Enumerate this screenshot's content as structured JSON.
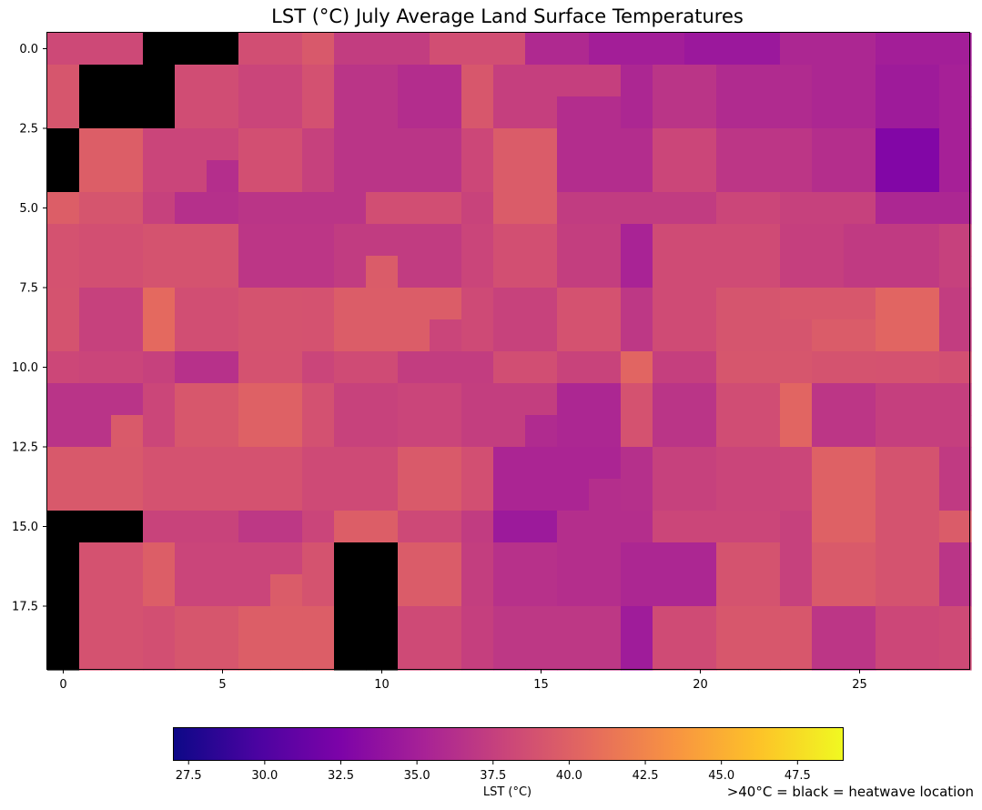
{
  "chart_data": {
    "type": "heatmap",
    "title": "LST (°C) July Average Land Surface Temperatures",
    "colormap": "plasma",
    "n_cols": 29,
    "n_rows": 20,
    "x_ticks": [
      "0",
      "5",
      "10",
      "15",
      "20",
      "25"
    ],
    "y_ticks": [
      "0.0",
      "2.5",
      "5.0",
      "7.5",
      "10.0",
      "12.5",
      "15.0",
      "17.5"
    ],
    "colorbar": {
      "label": "LST (°C)",
      "range": [
        27,
        49
      ],
      "ticks": [
        "27.5",
        "30.0",
        "32.5",
        "35.0",
        "37.5",
        "40.0",
        "42.5",
        "45.0",
        "47.5"
      ]
    },
    "heatwave_threshold": 40,
    "heatwave_color": "#000000",
    "note": ">40°C = black = heatwave location",
    "values": [
      [
        38.2,
        38.2,
        38.2,
        null,
        null,
        null,
        38.6,
        38.6,
        39.4,
        37.3,
        37.3,
        37.3,
        38.6,
        38.6,
        38.6,
        35.8,
        35.8,
        34.9,
        34.9,
        34.9,
        34.4,
        34.4,
        34.4,
        35.6,
        35.6,
        35.6,
        34.9,
        34.9,
        34.9
      ],
      [
        39.2,
        null,
        null,
        null,
        38.5,
        38.5,
        37.9,
        37.9,
        38.8,
        36.7,
        36.7,
        36.1,
        36.1,
        39.3,
        37.5,
        37.5,
        37.5,
        37.5,
        35.6,
        36.7,
        36.7,
        35.9,
        35.9,
        35.9,
        35.6,
        35.6,
        34.6,
        34.6,
        35.1
      ],
      [
        39.2,
        null,
        null,
        null,
        38.5,
        38.5,
        37.9,
        37.9,
        38.8,
        36.7,
        36.7,
        36.1,
        36.1,
        39.3,
        37.5,
        37.5,
        36.1,
        36.1,
        35.6,
        36.7,
        36.7,
        35.9,
        35.9,
        35.9,
        35.6,
        35.6,
        34.6,
        34.6,
        35.1
      ],
      [
        null,
        39.8,
        39.8,
        37.9,
        37.9,
        37.9,
        38.7,
        38.7,
        37.6,
        36.7,
        36.7,
        36.7,
        36.7,
        38.1,
        39.6,
        39.6,
        36.1,
        36.1,
        36.1,
        38.0,
        38.0,
        36.8,
        36.8,
        36.8,
        36.2,
        36.2,
        32.8,
        32.8,
        35.1
      ],
      [
        null,
        39.8,
        39.8,
        37.9,
        37.9,
        36.2,
        38.7,
        38.7,
        37.6,
        36.7,
        36.7,
        36.7,
        36.7,
        38.1,
        39.6,
        39.6,
        36.1,
        36.1,
        36.1,
        38.0,
        38.0,
        36.8,
        36.8,
        36.8,
        36.2,
        36.2,
        32.8,
        32.8,
        35.1
      ],
      [
        39.8,
        39.1,
        39.1,
        37.6,
        36.3,
        36.3,
        36.7,
        36.7,
        36.7,
        36.7,
        38.6,
        38.6,
        38.6,
        37.8,
        39.6,
        39.6,
        37.2,
        37.2,
        37.2,
        37.2,
        37.2,
        38.0,
        38.0,
        37.6,
        37.6,
        37.6,
        35.6,
        35.6,
        35.6
      ],
      [
        38.9,
        38.7,
        38.7,
        39.0,
        39.0,
        39.0,
        36.8,
        36.8,
        36.8,
        37.2,
        37.2,
        37.2,
        37.2,
        37.9,
        38.7,
        38.7,
        37.4,
        37.4,
        35.3,
        38.4,
        38.4,
        38.4,
        38.4,
        37.5,
        37.5,
        37.1,
        37.1,
        37.1,
        37.6
      ],
      [
        38.9,
        38.7,
        38.7,
        39.0,
        39.0,
        39.0,
        36.8,
        36.8,
        36.8,
        37.2,
        39.6,
        37.2,
        37.2,
        37.9,
        38.7,
        38.7,
        37.4,
        37.4,
        35.3,
        38.4,
        38.4,
        38.4,
        38.4,
        37.5,
        37.5,
        37.1,
        37.1,
        37.1,
        37.6
      ],
      [
        39.0,
        37.6,
        37.6,
        40.6,
        38.6,
        38.6,
        39.0,
        39.0,
        38.9,
        39.7,
        39.7,
        39.7,
        39.7,
        38.3,
        37.7,
        37.7,
        38.9,
        38.9,
        36.9,
        38.4,
        38.4,
        39.1,
        39.1,
        39.3,
        39.3,
        39.3,
        40.3,
        40.3,
        37.3
      ],
      [
        39.0,
        37.6,
        37.6,
        40.6,
        38.6,
        38.6,
        39.0,
        39.0,
        38.9,
        39.7,
        39.7,
        39.7,
        37.9,
        38.3,
        37.7,
        37.7,
        38.9,
        38.9,
        36.9,
        38.4,
        38.4,
        39.1,
        39.1,
        39.1,
        39.6,
        39.6,
        40.3,
        40.3,
        37.3
      ],
      [
        38.1,
        37.9,
        37.9,
        37.6,
        36.4,
        36.4,
        38.9,
        38.9,
        37.9,
        38.4,
        38.4,
        37.3,
        37.3,
        37.3,
        38.6,
        38.6,
        37.8,
        37.8,
        40.3,
        37.5,
        37.5,
        39.2,
        39.2,
        39.2,
        39.0,
        39.0,
        38.9,
        38.9,
        38.7
      ],
      [
        36.6,
        36.6,
        36.6,
        38.0,
        39.3,
        39.3,
        40.0,
        40.0,
        38.8,
        37.7,
        37.7,
        37.9,
        37.9,
        37.4,
        37.4,
        37.4,
        35.6,
        35.6,
        38.9,
        36.7,
        36.7,
        38.5,
        38.5,
        40.3,
        36.8,
        36.8,
        37.5,
        37.5,
        37.5
      ],
      [
        36.6,
        36.6,
        39.5,
        38.0,
        39.3,
        39.3,
        40.0,
        40.0,
        38.8,
        37.7,
        37.7,
        37.9,
        37.9,
        37.4,
        37.4,
        35.9,
        35.6,
        35.6,
        38.9,
        36.7,
        36.7,
        38.5,
        38.5,
        40.3,
        36.8,
        36.8,
        37.5,
        37.5,
        37.5
      ],
      [
        39.4,
        39.4,
        39.4,
        38.9,
        38.9,
        38.9,
        38.9,
        38.9,
        38.3,
        38.3,
        38.3,
        39.5,
        39.5,
        38.7,
        35.5,
        35.5,
        35.5,
        35.5,
        36.3,
        37.6,
        37.6,
        37.9,
        37.9,
        38.0,
        40.0,
        40.0,
        39.0,
        39.0,
        37.1
      ],
      [
        39.4,
        39.4,
        39.4,
        38.9,
        38.9,
        38.9,
        38.9,
        38.9,
        38.3,
        38.3,
        38.3,
        39.5,
        39.5,
        38.7,
        35.5,
        35.5,
        35.5,
        36.2,
        36.3,
        37.6,
        37.6,
        37.9,
        37.9,
        38.0,
        40.0,
        40.0,
        39.0,
        39.0,
        37.1
      ],
      [
        null,
        null,
        null,
        37.8,
        37.8,
        37.8,
        36.9,
        36.9,
        37.9,
        39.8,
        39.8,
        38.2,
        38.2,
        37.2,
        34.5,
        34.5,
        36.2,
        36.2,
        36.2,
        38.0,
        38.0,
        38.0,
        38.0,
        37.6,
        40.0,
        40.0,
        39.0,
        39.0,
        39.6
      ],
      [
        null,
        38.9,
        38.9,
        39.8,
        37.9,
        37.9,
        37.9,
        37.9,
        39.0,
        null,
        null,
        39.6,
        39.6,
        37.4,
        36.4,
        36.4,
        36.2,
        36.2,
        35.6,
        35.6,
        35.6,
        39.0,
        39.0,
        37.6,
        39.5,
        39.5,
        39.0,
        39.0,
        36.7
      ],
      [
        null,
        38.9,
        38.9,
        39.8,
        37.9,
        37.9,
        37.9,
        39.6,
        39.0,
        null,
        null,
        39.6,
        39.6,
        37.4,
        36.4,
        36.4,
        36.2,
        36.2,
        35.6,
        35.6,
        35.6,
        39.0,
        39.0,
        37.6,
        39.5,
        39.5,
        39.0,
        39.0,
        36.7
      ],
      [
        null,
        38.9,
        38.9,
        38.7,
        39.2,
        39.2,
        39.8,
        39.8,
        39.8,
        null,
        null,
        38.3,
        38.3,
        37.5,
        36.9,
        36.9,
        36.9,
        36.9,
        34.7,
        38.4,
        38.4,
        39.3,
        39.3,
        39.3,
        36.8,
        36.8,
        38.1,
        38.1,
        38.3
      ],
      [
        null,
        38.9,
        38.9,
        38.7,
        39.2,
        39.2,
        39.8,
        39.8,
        39.8,
        null,
        null,
        38.3,
        38.3,
        37.5,
        36.9,
        36.9,
        36.9,
        36.9,
        34.7,
        38.4,
        38.4,
        39.3,
        39.3,
        39.3,
        36.8,
        36.8,
        38.1,
        38.1,
        38.3
      ]
    ]
  }
}
